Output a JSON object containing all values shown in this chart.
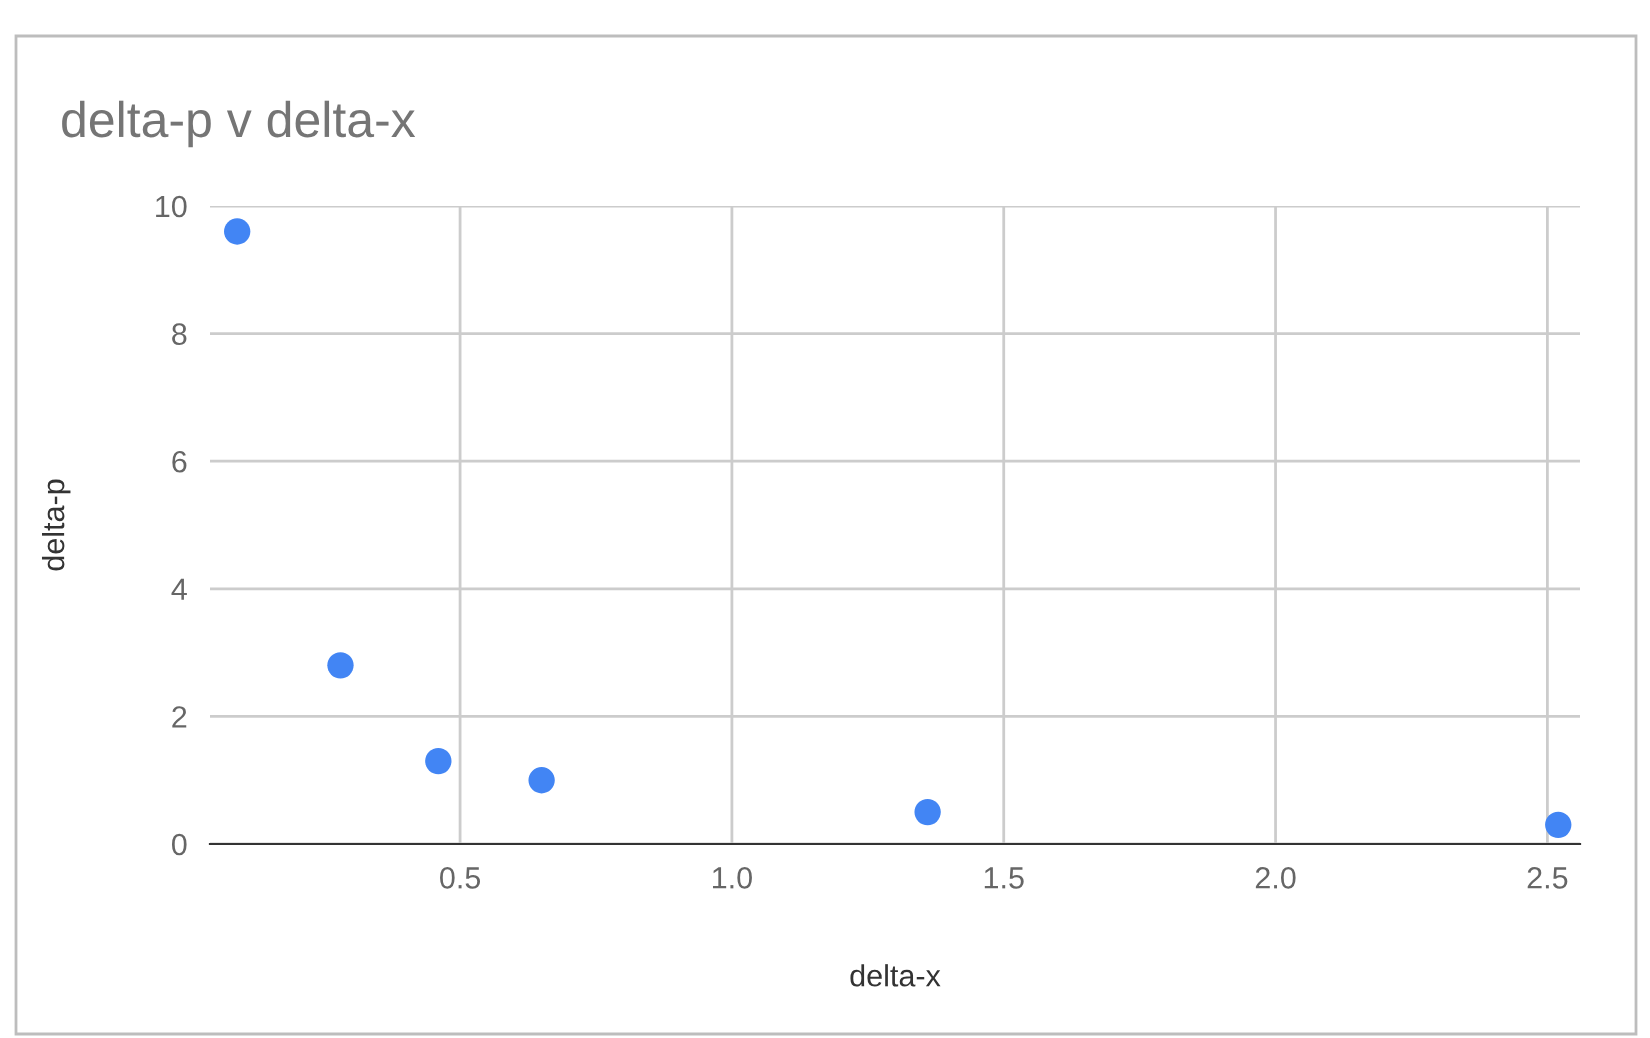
{
  "chart_data": {
    "type": "scatter",
    "title": "delta-p v delta-x",
    "xlabel": "delta-x",
    "ylabel": "delta-p",
    "x": [
      0.09,
      0.28,
      0.46,
      0.65,
      1.36,
      2.52
    ],
    "series": [
      {
        "color": "#4285f4",
        "values": [
          9.6,
          2.8,
          1.3,
          1.0,
          0.5,
          0.3
        ]
      }
    ],
    "xlim": [
      0.04,
      2.56
    ],
    "xticks": [
      0.5,
      {
        "value": 1,
        "label": "1.0"
      },
      1.5,
      {
        "value": 2,
        "label": "2.0"
      },
      2.5
    ],
    "ylim": [
      0,
      10
    ],
    "yticks": [
      0,
      2,
      4,
      6,
      8,
      10
    ],
    "grid": true,
    "marker": "circle"
  }
}
